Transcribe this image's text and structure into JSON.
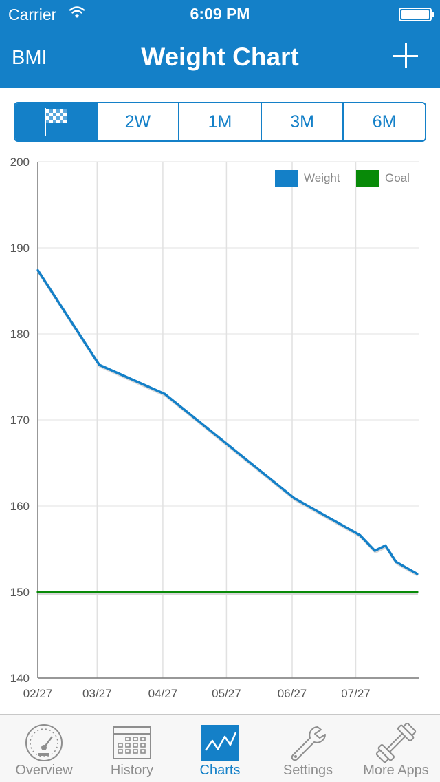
{
  "status_bar": {
    "carrier": "Carrier",
    "time": "6:09 PM"
  },
  "nav": {
    "left_label": "BMI",
    "title": "Weight Chart",
    "add_icon": "plus-icon"
  },
  "segments": [
    {
      "label": "",
      "icon": "checkered-flag-icon",
      "active": true
    },
    {
      "label": "2W",
      "active": false
    },
    {
      "label": "1M",
      "active": false
    },
    {
      "label": "3M",
      "active": false
    },
    {
      "label": "6M",
      "active": false
    }
  ],
  "colors": {
    "accent": "#1480c8",
    "goal": "#088a08",
    "grid": "#e1e1e1"
  },
  "chart_data": {
    "type": "line",
    "x_ticks": [
      "02/27",
      "03/27",
      "04/27",
      "05/27",
      "06/27",
      "07/27"
    ],
    "ylim": [
      140,
      200
    ],
    "y_ticks": [
      140,
      150,
      160,
      170,
      180,
      190,
      200
    ],
    "grid": true,
    "legend_position": "top-right",
    "series": [
      {
        "name": "Weight",
        "color": "#1480c8",
        "x": [
          "02/27",
          "03/28",
          "04/28",
          "06/28",
          "07/29",
          "08/05",
          "08/10",
          "08/15",
          "08/25"
        ],
        "values": [
          187.4,
          176.4,
          173.0,
          160.9,
          156.6,
          154.8,
          155.4,
          153.5,
          152.1
        ]
      },
      {
        "name": "Goal",
        "color": "#088a08",
        "x": [
          "02/27",
          "08/25"
        ],
        "values": [
          150,
          150
        ]
      }
    ]
  },
  "tabs": [
    {
      "label": "Overview",
      "icon": "speedometer-icon",
      "active": false
    },
    {
      "label": "History",
      "icon": "calendar-icon",
      "active": false
    },
    {
      "label": "Charts",
      "icon": "chart-line-icon",
      "active": true
    },
    {
      "label": "Settings",
      "icon": "wrench-icon",
      "active": false
    },
    {
      "label": "More Apps",
      "icon": "dumbbell-icon",
      "active": false
    }
  ]
}
